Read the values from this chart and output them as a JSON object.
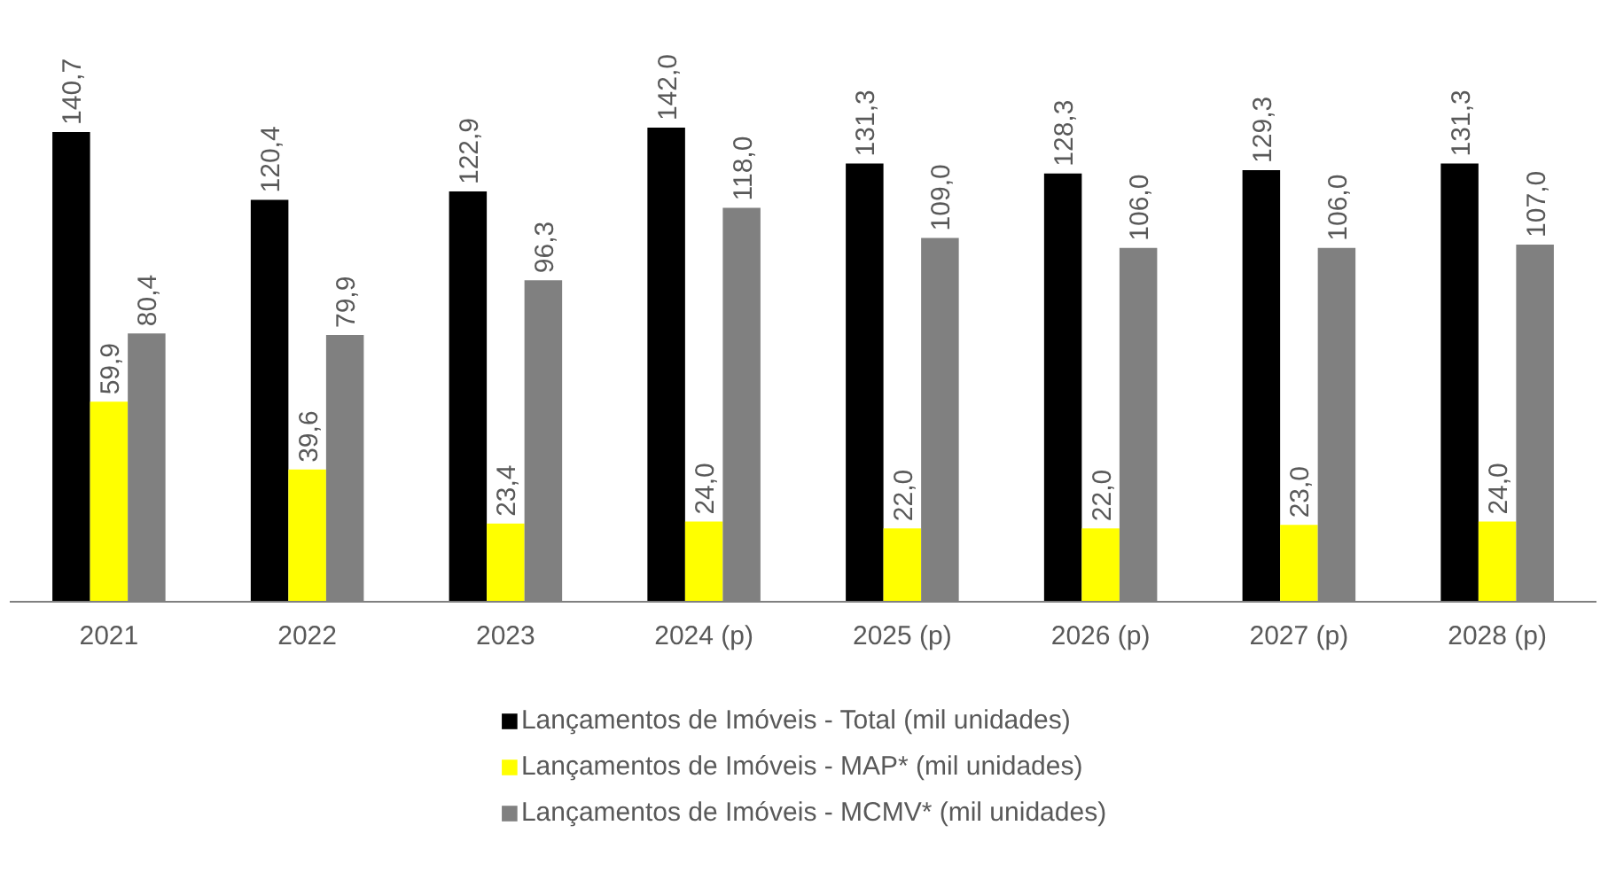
{
  "chart_data": {
    "type": "bar",
    "categories": [
      "2021",
      "2022",
      "2023",
      "2024 (p)",
      "2025 (p)",
      "2026 (p)",
      "2027 (p)",
      "2028 (p)"
    ],
    "series": [
      {
        "name": "Lançamentos de Imóveis - Total (mil unidades)",
        "color": "#000000",
        "values": [
          140.7,
          120.4,
          122.9,
          142.0,
          131.3,
          128.3,
          129.3,
          131.3
        ],
        "value_labels": [
          "140,7",
          "120,4",
          "122,9",
          "142,0",
          "131,3",
          "128,3",
          "129,3",
          "131,3"
        ]
      },
      {
        "name": "Lançamentos de Imóveis - MAP* (mil unidades)",
        "color": "#ffff00",
        "values": [
          59.9,
          39.6,
          23.4,
          24.0,
          22.0,
          22.0,
          23.0,
          24.0
        ],
        "value_labels": [
          "59,9",
          "39,6",
          "23,4",
          "24,0",
          "22,0",
          "22,0",
          "23,0",
          "24,0"
        ]
      },
      {
        "name": "Lançamentos de Imóveis - MCMV* (mil unidades)",
        "color": "#808080",
        "values": [
          80.4,
          79.9,
          96.3,
          118.0,
          109.0,
          106.0,
          106.0,
          107.0
        ],
        "value_labels": [
          "80,4",
          "79,9",
          "96,3",
          "118,0",
          "109,0",
          "106,0",
          "106,0",
          "107,0"
        ]
      }
    ],
    "legend": "bottom",
    "grid": false
  }
}
